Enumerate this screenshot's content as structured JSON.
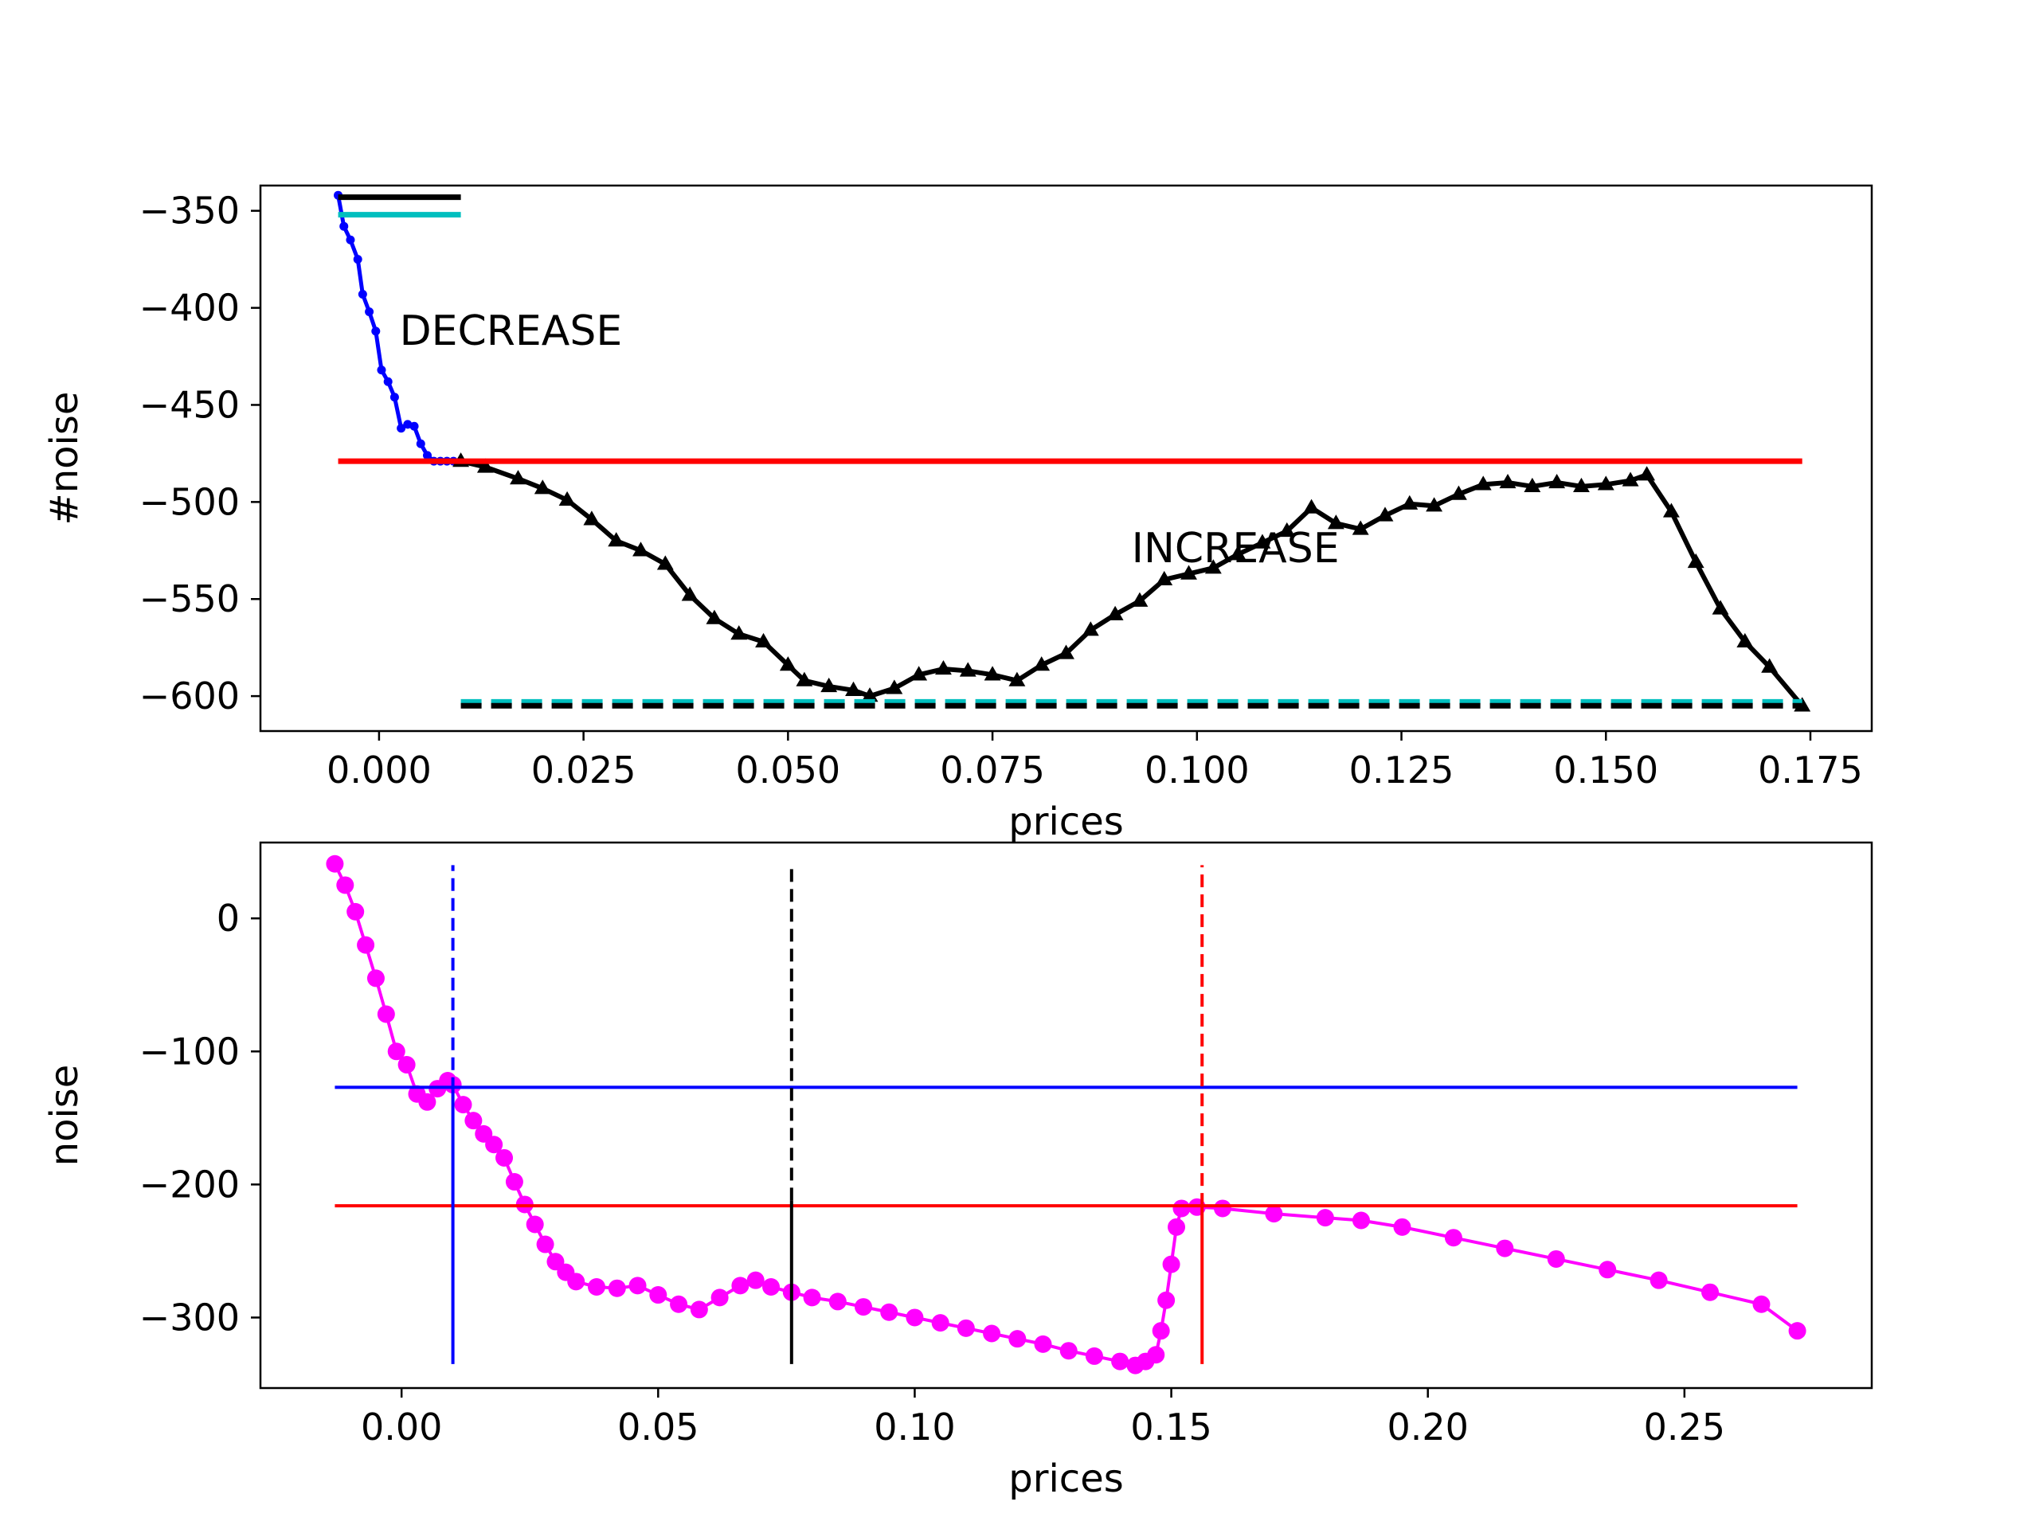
{
  "chart_data": [
    {
      "type": "line",
      "xlabel": "prices",
      "ylabel": "#noise",
      "xlim": [
        -0.0145,
        0.1825
      ],
      "ylim": [
        -618,
        -337
      ],
      "xticks": [
        "0.000",
        "0.025",
        "0.050",
        "0.075",
        "0.100",
        "0.125",
        "0.150",
        "0.175"
      ],
      "xtick_values": [
        0,
        0.025,
        0.05,
        0.075,
        0.1,
        0.125,
        0.15,
        0.175
      ],
      "yticks": [
        "−350",
        "−400",
        "−450",
        "−500",
        "−550",
        "−600"
      ],
      "ytick_values": [
        -350,
        -400,
        -450,
        -500,
        -550,
        -600
      ],
      "annotations": [
        {
          "text": "DECREASE",
          "x": 0.0025,
          "y": -419
        },
        {
          "text": "INCREASE",
          "x": 0.092,
          "y": -531
        }
      ],
      "series": [
        {
          "style": "line-dots",
          "color": "#0000ff",
          "x": [
            -0.005,
            -0.0043,
            -0.0035,
            -0.0026,
            -0.002,
            -0.0012,
            -0.0004,
            0.0003,
            0.0011,
            0.0019,
            0.0027,
            0.0035,
            0.0043,
            0.0051,
            0.0059,
            0.0067,
            0.0075,
            0.0083,
            0.0091,
            0.01
          ],
          "y": [
            -342,
            -358,
            -365,
            -375,
            -393,
            -402,
            -412,
            -432,
            -438,
            -446,
            -462,
            -460,
            -461,
            -470,
            -476,
            -479,
            -479,
            -479,
            -479,
            -479
          ]
        },
        {
          "style": "line-triangles",
          "color": "#000000",
          "x": [
            0.01,
            0.013,
            0.017,
            0.02,
            0.023,
            0.026,
            0.029,
            0.032,
            0.035,
            0.038,
            0.041,
            0.044,
            0.047,
            0.05,
            0.052,
            0.055,
            0.058,
            0.06,
            0.063,
            0.066,
            0.069,
            0.072,
            0.075,
            0.078,
            0.081,
            0.084,
            0.087,
            0.09,
            0.093,
            0.096,
            0.099,
            0.102,
            0.105,
            0.108,
            0.111,
            0.114,
            0.117,
            0.12,
            0.123,
            0.126,
            0.129,
            0.132,
            0.135,
            0.138,
            0.141,
            0.144,
            0.147,
            0.15,
            0.153,
            0.155,
            0.158,
            0.161,
            0.164,
            0.167,
            0.17,
            0.174
          ],
          "y": [
            -479,
            -482,
            -488,
            -493,
            -499,
            -509,
            -520,
            -525,
            -532,
            -548,
            -560,
            -568,
            -572,
            -584,
            -592,
            -595,
            -597,
            -600,
            -596,
            -589,
            -586,
            -587,
            -589,
            -592,
            -584,
            -578,
            -566,
            -558,
            -551,
            -540,
            -537,
            -534,
            -527,
            -521,
            -515,
            -503,
            -511,
            -514,
            -507,
            -501,
            -502,
            -496,
            -491,
            -490,
            -492,
            -490,
            -492,
            -491,
            -489,
            -486,
            -505,
            -531,
            -555,
            -572,
            -585,
            -605
          ]
        },
        {
          "style": "hline",
          "color": "#ff0000",
          "x": [
            -0.005,
            0.174
          ],
          "y": -479
        },
        {
          "style": "hline",
          "color": "#000000",
          "x": [
            -0.005,
            0.01
          ],
          "y": -343
        },
        {
          "style": "hline",
          "color": "#00bfbf",
          "x": [
            -0.005,
            0.01
          ],
          "y": -352
        },
        {
          "style": "hline-dashed",
          "color": "#00bfbf",
          "x": [
            0.01,
            0.174
          ],
          "y": -603
        },
        {
          "style": "hline-dashed",
          "color": "#000000",
          "x": [
            0.01,
            0.174
          ],
          "y": -605
        }
      ]
    },
    {
      "type": "scatter",
      "xlabel": "prices",
      "ylabel": "noise",
      "xlim": [
        -0.0275,
        0.2865
      ],
      "ylim": [
        -353,
        57
      ],
      "xticks": [
        "0.00",
        "0.05",
        "0.10",
        "0.15",
        "0.20",
        "0.25"
      ],
      "xtick_values": [
        0,
        0.05,
        0.1,
        0.15,
        0.2,
        0.25
      ],
      "yticks": [
        "0",
        "−100",
        "−200",
        "−300"
      ],
      "ytick_values": [
        0,
        -100,
        -200,
        -300
      ],
      "series": [
        {
          "style": "line-dots",
          "color": "#ff00ff",
          "x": [
            -0.013,
            -0.011,
            -0.009,
            -0.007,
            -0.005,
            -0.003,
            -0.001,
            0.001,
            0.003,
            0.005,
            0.007,
            0.009,
            0.01,
            0.012,
            0.014,
            0.016,
            0.018,
            0.02,
            0.022,
            0.024,
            0.026,
            0.028,
            0.03,
            0.032,
            0.034,
            0.038,
            0.042,
            0.046,
            0.05,
            0.054,
            0.058,
            0.062,
            0.066,
            0.069,
            0.072,
            0.076,
            0.08,
            0.085,
            0.09,
            0.095,
            0.1,
            0.105,
            0.11,
            0.115,
            0.12,
            0.125,
            0.13,
            0.135,
            0.14,
            0.143,
            0.145,
            0.147,
            0.148,
            0.149,
            0.15,
            0.151,
            0.152,
            0.155,
            0.16,
            0.17,
            0.18,
            0.187,
            0.195,
            0.205,
            0.215,
            0.225,
            0.235,
            0.245,
            0.255,
            0.265,
            0.272
          ],
          "y": [
            41,
            25,
            5,
            -20,
            -45,
            -72,
            -100,
            -110,
            -132,
            -138,
            -128,
            -122,
            -125,
            -140,
            -152,
            -162,
            -170,
            -180,
            -198,
            -215,
            -230,
            -245,
            -258,
            -266,
            -273,
            -277,
            -278,
            -276,
            -283,
            -290,
            -294,
            -285,
            -276,
            -272,
            -277,
            -281,
            -285,
            -288,
            -292,
            -296,
            -300,
            -304,
            -308,
            -312,
            -316,
            -320,
            -325,
            -329,
            -333,
            -336,
            -333,
            -328,
            -310,
            -287,
            -260,
            -232,
            -218,
            -217,
            -218,
            -222,
            -225,
            -227,
            -232,
            -240,
            -248,
            -256,
            -264,
            -272,
            -281,
            -290,
            -310
          ]
        },
        {
          "style": "hline",
          "color": "#0000ff",
          "x": [
            -0.013,
            0.272
          ],
          "y": -127
        },
        {
          "style": "hline",
          "color": "#ff0000",
          "x": [
            -0.013,
            0.272
          ],
          "y": -216
        },
        {
          "style": "vline",
          "color": "#0000ff",
          "x": 0.01,
          "y": [
            -335,
            -129
          ]
        },
        {
          "style": "vline-dashed",
          "color": "#0000ff",
          "x": 0.01,
          "y": [
            -129,
            40
          ]
        },
        {
          "style": "vline",
          "color": "#000000",
          "x": 0.076,
          "y": [
            -335,
            -212
          ]
        },
        {
          "style": "vline-dashed",
          "color": "#000000",
          "x": 0.076,
          "y": [
            -212,
            40
          ]
        },
        {
          "style": "vline",
          "color": "#ff0000",
          "x": 0.156,
          "y": [
            -335,
            -216
          ]
        },
        {
          "style": "vline-dashed",
          "color": "#ff0000",
          "x": 0.156,
          "y": [
            -216,
            40
          ]
        }
      ]
    }
  ]
}
